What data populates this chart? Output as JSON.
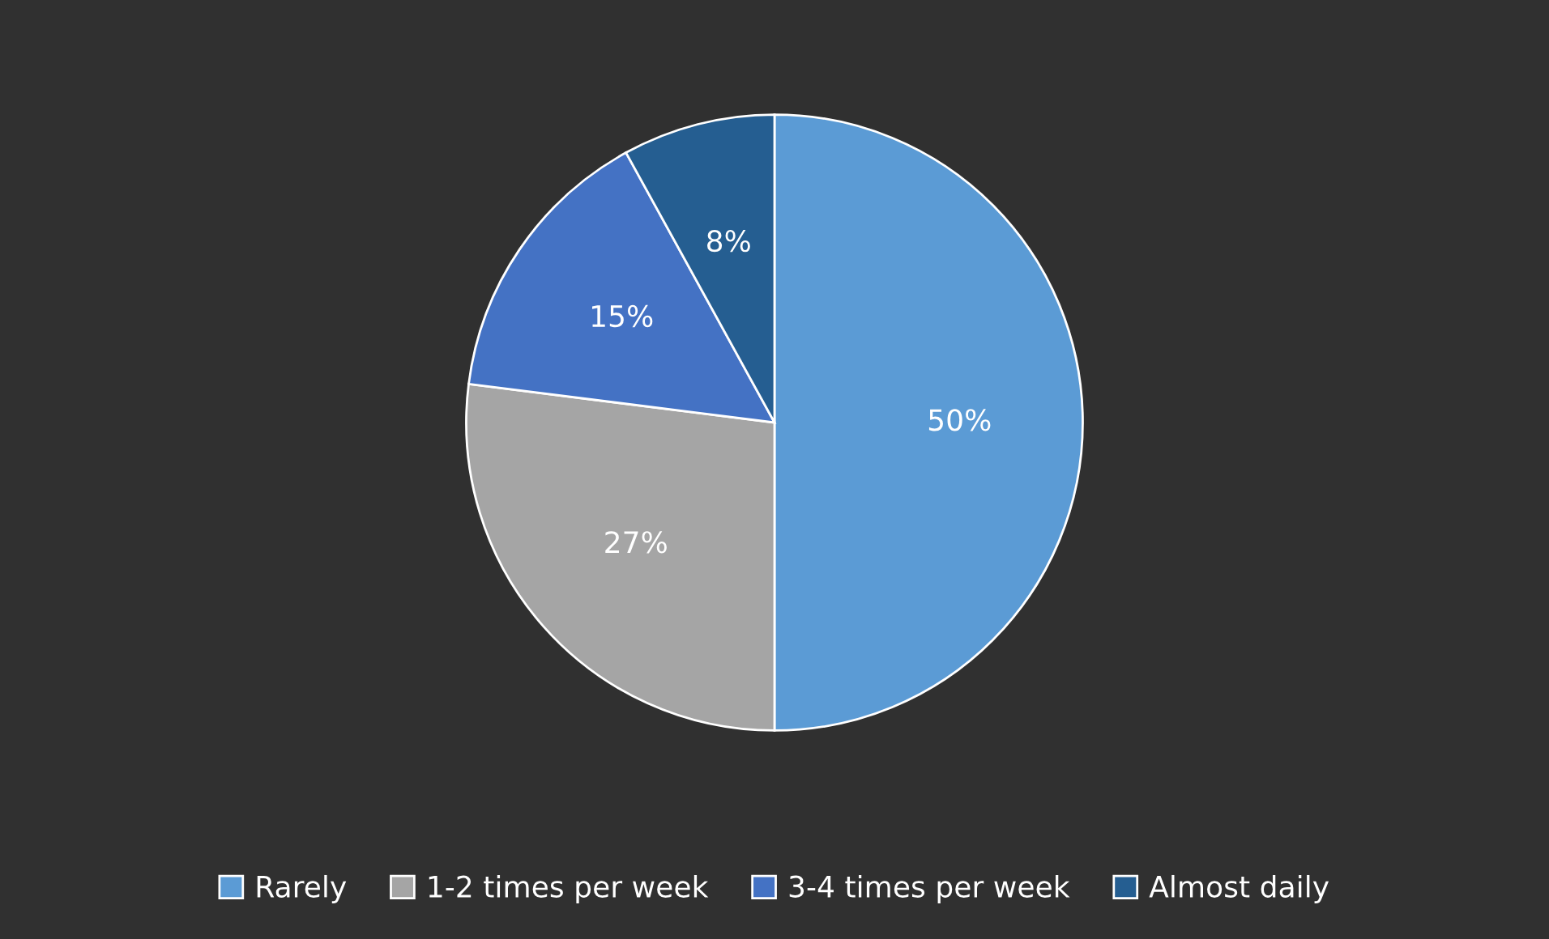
{
  "chart_data": {
    "type": "pie",
    "categories": [
      "Rarely",
      "1-2 times per week",
      "3-4 times per week",
      "Almost daily"
    ],
    "values": [
      50,
      27,
      15,
      8
    ],
    "colors": [
      "#5b9bd5",
      "#a5a5a5",
      "#4472c4",
      "#255e91"
    ],
    "value_labels": [
      "50%",
      "27%",
      "15%",
      "8%"
    ],
    "legend": "bottom"
  }
}
